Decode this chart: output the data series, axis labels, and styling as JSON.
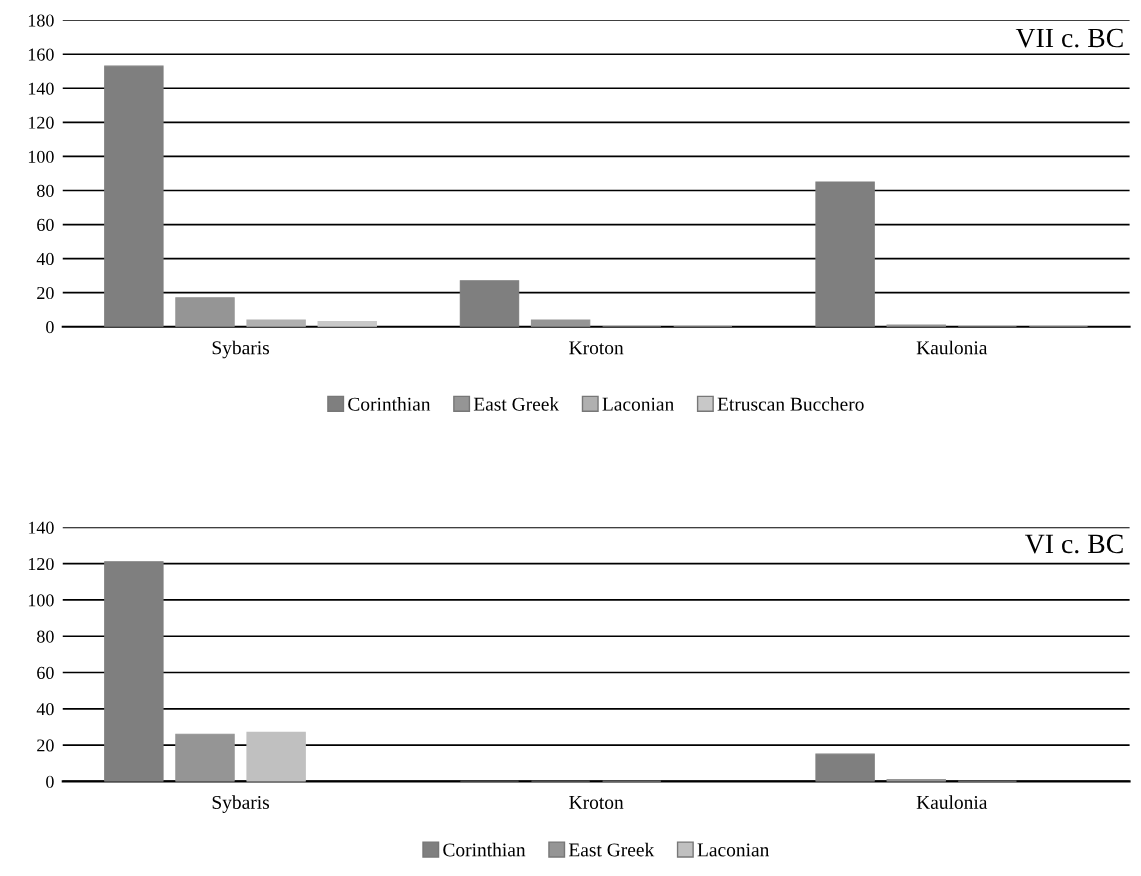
{
  "chart_data": [
    {
      "type": "bar",
      "title": "VII c. BC",
      "categories": [
        "Sybaris",
        "Kroton",
        "Kaulonia"
      ],
      "ylim": [
        0,
        180
      ],
      "yticks": [
        0,
        20,
        40,
        60,
        80,
        100,
        120,
        140,
        160,
        180
      ],
      "grid": "y",
      "legend": "bottom",
      "series": [
        {
          "name": "Corinthian",
          "color": "#7f7f7f",
          "values": [
            153,
            27,
            85
          ]
        },
        {
          "name": "East Greek",
          "color": "#959595",
          "values": [
            17,
            4,
            1
          ]
        },
        {
          "name": "Laconian",
          "color": "#b0b0b0",
          "values": [
            4,
            0,
            0
          ]
        },
        {
          "name": "Etruscan Bucchero",
          "color": "#c8c8c8",
          "values": [
            3,
            0,
            0
          ]
        }
      ]
    },
    {
      "type": "bar",
      "title": "VI c. BC",
      "categories": [
        "Sybaris",
        "Kroton",
        "Kaulonia"
      ],
      "ylim": [
        0,
        140
      ],
      "yticks": [
        0,
        20,
        40,
        60,
        80,
        100,
        120,
        140
      ],
      "grid": "y",
      "legend": "bottom",
      "series": [
        {
          "name": "Corinthian",
          "color": "#7f7f7f",
          "values": [
            121,
            0,
            15
          ]
        },
        {
          "name": "East Greek",
          "color": "#959595",
          "values": [
            26,
            0,
            1
          ]
        },
        {
          "name": "Laconian",
          "color": "#c0c0c0",
          "values": [
            27,
            0,
            0
          ]
        }
      ]
    }
  ]
}
